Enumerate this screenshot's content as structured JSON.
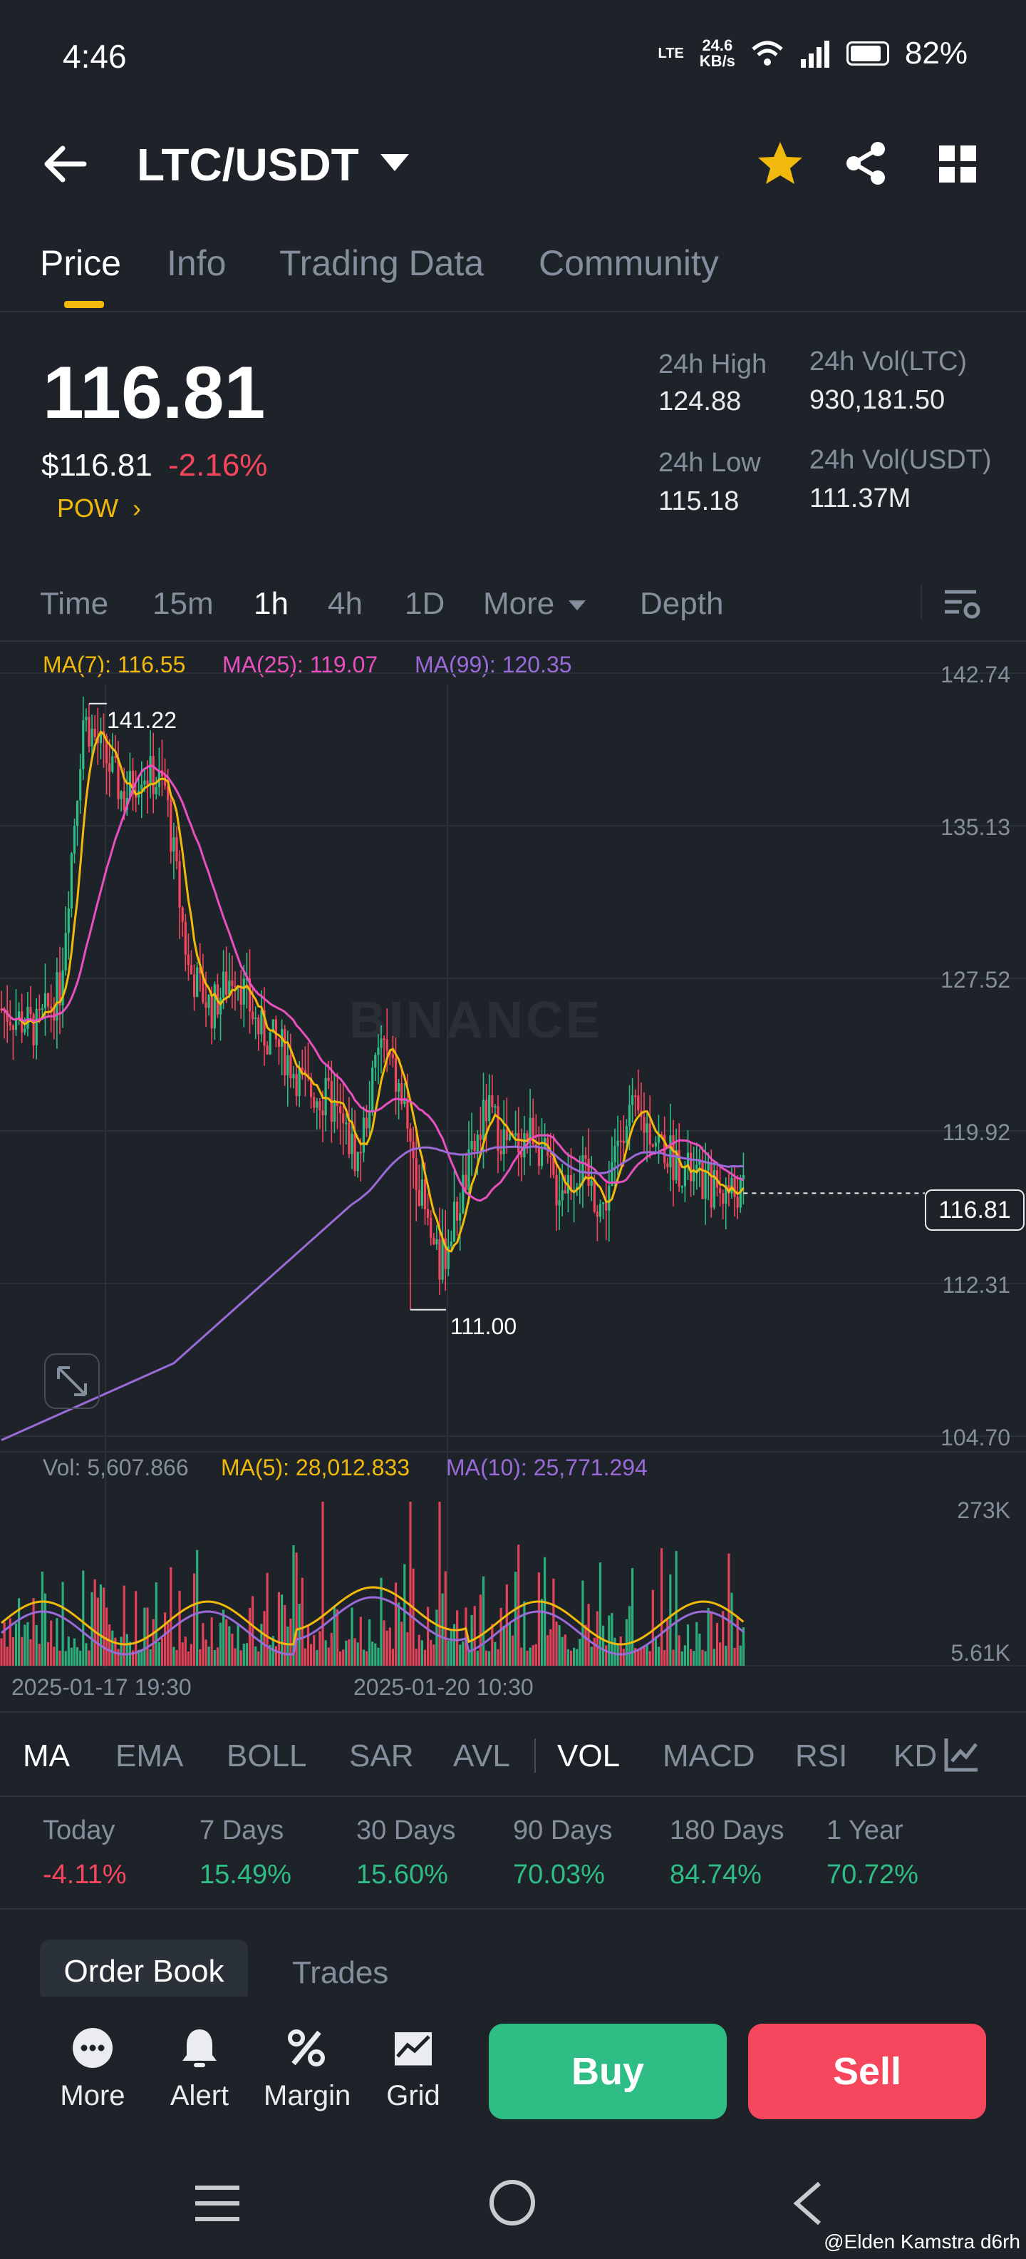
{
  "status_bar": {
    "time": "4:46",
    "network": "LTE",
    "speed_top": "24.6",
    "speed_bottom": "KB/s",
    "battery": "82%"
  },
  "header": {
    "pair": "LTC/USDT"
  },
  "tabs": [
    "Price",
    "Info",
    "Trading Data",
    "Community"
  ],
  "price": {
    "last": "116.81",
    "usd": "$116.81",
    "change": "-2.16%",
    "tag": "POW",
    "high_label": "24h High",
    "high": "124.88",
    "low_label": "24h Low",
    "low": "115.18",
    "vol_base_label": "24h Vol(LTC)",
    "vol_base": "930,181.50",
    "vol_quote_label": "24h Vol(USDT)",
    "vol_quote": "111.37M"
  },
  "intervals": {
    "time": "Time",
    "m15": "15m",
    "h1": "1h",
    "h4": "4h",
    "d1": "1D",
    "more": "More",
    "depth": "Depth"
  },
  "chart_legend": {
    "ma7": "MA(7): 116.55",
    "ma25": "MA(25): 119.07",
    "ma99": "MA(99): 120.35"
  },
  "chart_axis": [
    "142.74",
    "135.13",
    "127.52",
    "119.92",
    "112.31",
    "104.70"
  ],
  "chart_marks": {
    "high": "141.22",
    "low": "111.00",
    "current": "116.81"
  },
  "watermark": "BINANCE",
  "volume_legend": {
    "vol": "Vol: 5,607.866",
    "ma5": "MA(5): 28,012.833",
    "ma10": "MA(10): 25,771.294"
  },
  "volume_axis": {
    "top": "273K",
    "bottom": "5.61K"
  },
  "x_axis": [
    "2025-01-17 19:30",
    "2025-01-20 10:30"
  ],
  "indicators": [
    "MA",
    "EMA",
    "BOLL",
    "SAR",
    "AVL",
    "VOL",
    "MACD",
    "RSI",
    "KD"
  ],
  "performance": [
    {
      "label": "Today",
      "value": "-4.11%"
    },
    {
      "label": "7 Days",
      "value": "15.49%"
    },
    {
      "label": "30 Days",
      "value": "15.60%"
    },
    {
      "label": "90 Days",
      "value": "70.03%"
    },
    {
      "label": "180 Days",
      "value": "84.74%"
    },
    {
      "label": "1 Year",
      "value": "70.72%"
    }
  ],
  "book_tabs": {
    "order_book": "Order Book",
    "trades": "Trades"
  },
  "actions": {
    "more": "More",
    "alert": "Alert",
    "margin": "Margin",
    "grid": "Grid",
    "buy": "Buy",
    "sell": "Sell"
  },
  "colors": {
    "up": "#2ebd85",
    "down": "#f6465d",
    "ma7": "#f0b90b",
    "ma25": "#e84fbf",
    "ma99": "#9a6bd8",
    "accent": "#f0b90b"
  },
  "credit": "@Elden Kamstra d6rh",
  "chart_data": {
    "type": "candlestick",
    "ylim": [
      104.7,
      142.74
    ],
    "yticks": [
      142.74,
      135.13,
      127.52,
      119.92,
      112.31,
      104.7
    ],
    "x_labels": [
      "2025-01-17 19:30",
      "2025-01-20 10:30"
    ],
    "high": 141.22,
    "low": 111.0,
    "last": 116.81,
    "series": [
      {
        "name": "MA(7)",
        "last": 116.55
      },
      {
        "name": "MA(25)",
        "last": 119.07
      },
      {
        "name": "MA(99)",
        "last": 120.35
      }
    ],
    "volume": {
      "last": 5607.866,
      "ma5": 28012.833,
      "ma10": 25771.294,
      "axis_top": "273K",
      "axis_bottom": "5.61K"
    }
  }
}
